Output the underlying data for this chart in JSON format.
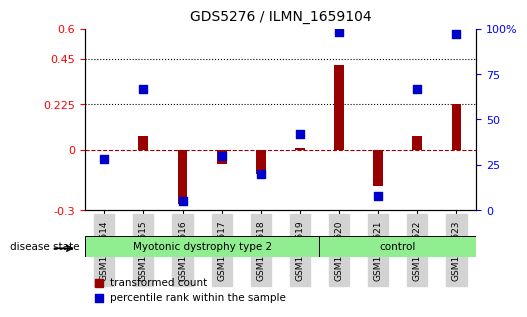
{
  "title": "GDS5276 / ILMN_1659104",
  "samples": [
    "GSM1102614",
    "GSM1102615",
    "GSM1102616",
    "GSM1102617",
    "GSM1102618",
    "GSM1102619",
    "GSM1102620",
    "GSM1102621",
    "GSM1102622",
    "GSM1102623"
  ],
  "red_values": [
    0.0,
    0.07,
    -0.27,
    -0.07,
    -0.12,
    0.01,
    0.42,
    -0.18,
    0.07,
    0.225
  ],
  "blue_values": [
    0.28,
    0.67,
    0.05,
    0.3,
    0.2,
    0.42,
    0.98,
    0.08,
    0.67,
    0.97
  ],
  "ylim_left": [
    -0.3,
    0.6
  ],
  "ylim_right": [
    0,
    100
  ],
  "yticks_left": [
    -0.3,
    0.0,
    0.225,
    0.45,
    0.6
  ],
  "yticks_right": [
    0,
    25,
    50,
    75,
    100
  ],
  "ytick_labels_left": [
    "-0.3",
    "0",
    "0.225",
    "0.45",
    "0.6"
  ],
  "ytick_labels_right": [
    "0",
    "25",
    "50",
    "75",
    "100%"
  ],
  "hlines": [
    0.225,
    0.45
  ],
  "groups": [
    {
      "label": "Myotonic dystrophy type 2",
      "start": 0,
      "end": 6,
      "color": "#90EE90"
    },
    {
      "label": "control",
      "start": 6,
      "end": 10,
      "color": "#90EE90"
    }
  ],
  "disease_state_label": "disease state",
  "legend_red": "transformed count",
  "legend_blue": "percentile rank within the sample",
  "red_color": "#990000",
  "blue_color": "#0000CC",
  "bar_width": 0.25,
  "dot_size": 40,
  "background_color": "#ffffff",
  "plot_bg_color": "#ffffff",
  "group_box_color": "#d3d3d3"
}
